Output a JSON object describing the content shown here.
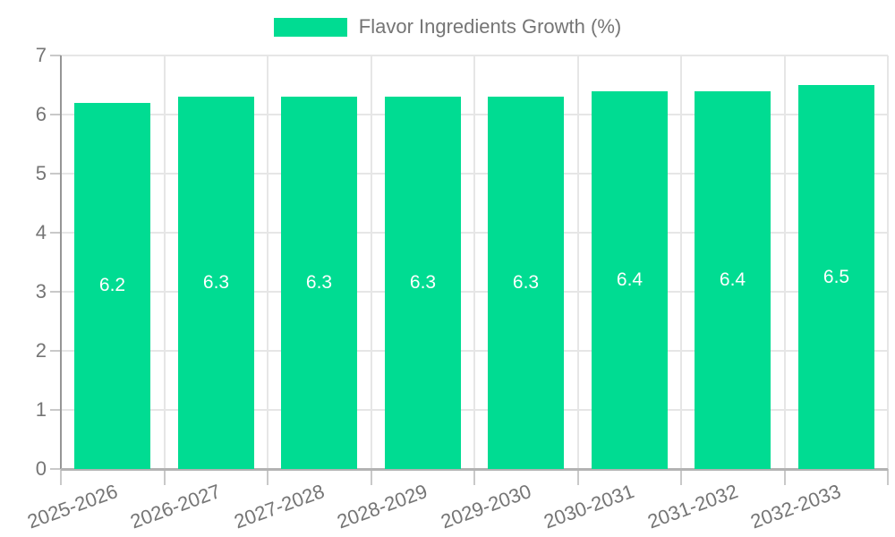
{
  "chart_data": {
    "type": "bar",
    "title": "Flavor Ingredients Growth (%)",
    "categories": [
      "2025-2026",
      "2026-2027",
      "2027-2028",
      "2028-2029",
      "2029-2030",
      "2030-2031",
      "2031-2032",
      "2032-2033"
    ],
    "values": [
      6.2,
      6.3,
      6.3,
      6.3,
      6.3,
      6.4,
      6.4,
      6.5
    ],
    "value_labels": [
      "6.2",
      "6.3",
      "6.3",
      "6.3",
      "6.3",
      "6.4",
      "6.4",
      "6.5"
    ],
    "xlabel": "",
    "ylabel": "",
    "ylim": [
      0,
      7
    ],
    "yticks": [
      0,
      1,
      2,
      3,
      4,
      5,
      6,
      7
    ],
    "grid": true,
    "legend_position": "top",
    "x_label_rotation_deg": -20,
    "colors": {
      "bar": "#00DC92",
      "axis_text": "#757575",
      "value_label": "#ffffff",
      "gridline": "#e6e6e6",
      "tick": "#c9c9c9",
      "y_axis_line": "#969696",
      "x_axis_line": "#b3b3b3",
      "background": "#ffffff"
    }
  }
}
